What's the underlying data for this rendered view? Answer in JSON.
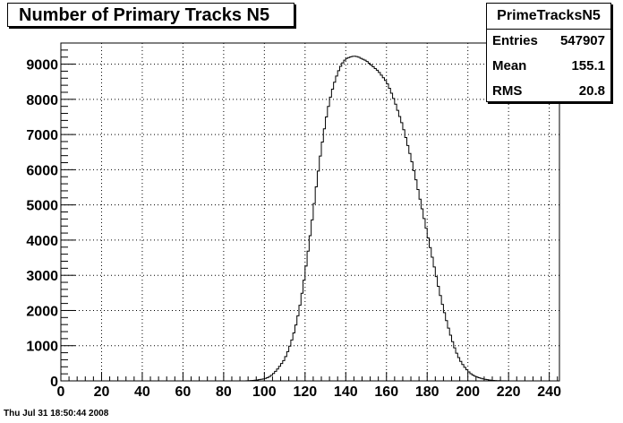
{
  "title": "Number of Primary Tracks N5",
  "stats": {
    "name": "PrimeTracksN5",
    "rows": [
      {
        "label": "Entries",
        "value": "547907"
      },
      {
        "label": "Mean",
        "value": "155.1"
      },
      {
        "label": "RMS",
        "value": "20.8"
      }
    ]
  },
  "timestamp": "Thu Jul 31 18:50:44 2008",
  "chart_data": {
    "type": "area",
    "histogram": true,
    "xlim": [
      0,
      245
    ],
    "ylim": [
      0,
      9600
    ],
    "x_ticks": [
      0,
      20,
      40,
      60,
      80,
      100,
      120,
      140,
      160,
      180,
      200,
      220,
      240
    ],
    "y_ticks": [
      0,
      1000,
      2000,
      3000,
      4000,
      5000,
      6000,
      7000,
      8000,
      9000
    ],
    "grid": true,
    "bin_width": 1,
    "series": [
      {
        "x": [
          90,
          92,
          94,
          96,
          98,
          100,
          102,
          104,
          106,
          108,
          110,
          112,
          114,
          116,
          118,
          120,
          122,
          124,
          126,
          128,
          130,
          132,
          134,
          136,
          138,
          140,
          142,
          144,
          146,
          148,
          150,
          152,
          154,
          156,
          158,
          160,
          162,
          164,
          166,
          168,
          170,
          172,
          174,
          176,
          178,
          180,
          182,
          184,
          186,
          188,
          190,
          192,
          194,
          196,
          198,
          200,
          202,
          204,
          206,
          208,
          210,
          212,
          214,
          216,
          218,
          220,
          222,
          224
        ],
        "y": [
          0,
          5,
          10,
          20,
          40,
          60,
          100,
          180,
          300,
          450,
          620,
          900,
          1250,
          1700,
          2300,
          3050,
          3900,
          4800,
          5750,
          6600,
          7350,
          7950,
          8400,
          8750,
          9000,
          9150,
          9200,
          9230,
          9210,
          9150,
          9100,
          9000,
          8900,
          8800,
          8650,
          8500,
          8250,
          7950,
          7600,
          7250,
          6800,
          6350,
          5850,
          5300,
          4750,
          4200,
          3650,
          3100,
          2550,
          2050,
          1600,
          1200,
          850,
          600,
          420,
          280,
          180,
          120,
          80,
          50,
          30,
          15,
          8,
          4,
          2,
          1,
          0,
          0
        ]
      }
    ]
  }
}
